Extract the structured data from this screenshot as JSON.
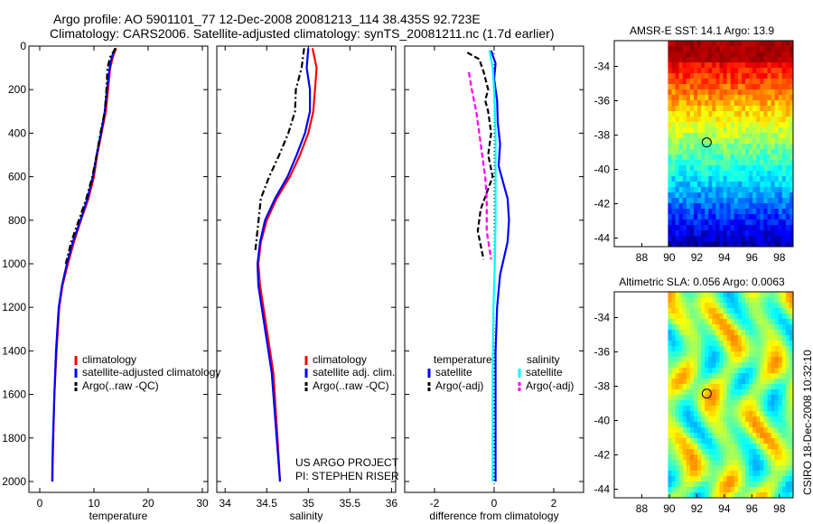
{
  "title_line1": "Argo profile: AO 5901101_77 12-Dec-2008 20081213_114 38.435S 92.723E",
  "title_line2": "Climatology: CARS2006. Satellite-adjusted climatology: synTS_20081211.nc (1.7d earlier)",
  "credit": "CSIRO 18-Dec-2008 10:32:10",
  "project_line1": "US ARGO PROJECT",
  "project_line2": "PI: STEPHEN RISER",
  "colors": {
    "climatology": "#ff0000",
    "satellite": "#0000ff",
    "argo": "#000000",
    "salinity_satellite": "#00ffff",
    "salinity_argo": "#ff00ff"
  },
  "chart_data": [
    {
      "type": "line",
      "id": "temperature",
      "xlabel": "temperature",
      "ylabel": "",
      "xlim": [
        -2,
        31
      ],
      "ylim": [
        2050,
        0
      ],
      "xticks": [
        0,
        10,
        20,
        30
      ],
      "yticks": [
        0,
        200,
        400,
        600,
        800,
        1000,
        1200,
        1400,
        1600,
        1800,
        2000
      ],
      "legend": [
        "climatology",
        "satellite-adjusted climatology",
        "Argo(..raw -QC)"
      ],
      "series": [
        {
          "name": "climatology",
          "color": "#ff0000",
          "style": "solid",
          "x": [
            14.1,
            13.5,
            13.0,
            12.6,
            12.2,
            11.4,
            10.6,
            10.0,
            9.0,
            7.6,
            6.3,
            5.2,
            4.2,
            3.6,
            3.1,
            2.7,
            2.5,
            2.4,
            2.35
          ],
          "y": [
            10,
            50,
            100,
            200,
            300,
            400,
            500,
            600,
            700,
            800,
            900,
            1000,
            1100,
            1200,
            1400,
            1600,
            1800,
            1900,
            2000
          ]
        },
        {
          "name": "satellite-adjusted climatology",
          "color": "#0000ff",
          "style": "solid",
          "x": [
            13.9,
            13.3,
            12.9,
            12.4,
            12.0,
            11.3,
            10.5,
            9.8,
            8.8,
            7.5,
            6.1,
            5.0,
            4.1,
            3.5,
            3.0,
            2.7,
            2.45,
            2.35,
            2.3
          ],
          "y": [
            10,
            50,
            100,
            200,
            300,
            400,
            500,
            600,
            700,
            800,
            900,
            1000,
            1100,
            1200,
            1400,
            1600,
            1800,
            1900,
            2000
          ]
        },
        {
          "name": "Argo(..raw -QC)",
          "color": "#000000",
          "style": "dashdot",
          "x": [
            14.0,
            13.0,
            12.5,
            12.3,
            12.0,
            11.2,
            10.5,
            9.7,
            8.6,
            7.2,
            5.8,
            4.8
          ],
          "y": [
            10,
            50,
            100,
            200,
            300,
            400,
            500,
            600,
            700,
            800,
            900,
            1000
          ]
        }
      ]
    },
    {
      "type": "line",
      "id": "salinity",
      "xlabel": "salinity",
      "ylabel": "",
      "xlim": [
        33.9,
        36.05
      ],
      "ylim": [
        2050,
        0
      ],
      "xticks": [
        34,
        34.5,
        35,
        35.5,
        36
      ],
      "legend": [
        "climatology",
        "satellite adj. clim.",
        "Argo(..raw -QC)"
      ],
      "series": [
        {
          "name": "climatology",
          "color": "#ff0000",
          "style": "solid",
          "x": [
            35.05,
            35.1,
            35.08,
            35.06,
            35.0,
            34.9,
            34.78,
            34.62,
            34.5,
            34.43,
            34.4,
            34.42,
            34.5,
            34.58,
            34.63,
            34.66
          ],
          "y": [
            10,
            100,
            200,
            300,
            400,
            500,
            600,
            700,
            800,
            900,
            1000,
            1100,
            1300,
            1500,
            1800,
            2000
          ]
        },
        {
          "name": "satellite adj. clim.",
          "color": "#0000ff",
          "style": "solid",
          "x": [
            35.0,
            34.98,
            35.02,
            35.02,
            34.96,
            34.86,
            34.75,
            34.6,
            34.48,
            34.42,
            34.39,
            34.4,
            34.48,
            34.56,
            34.62,
            34.66
          ],
          "y": [
            10,
            100,
            200,
            300,
            400,
            500,
            600,
            700,
            800,
            900,
            1000,
            1100,
            1300,
            1500,
            1800,
            2000
          ]
        },
        {
          "name": "Argo(..raw -QC)",
          "color": "#000000",
          "style": "dashdot",
          "x": [
            34.95,
            34.92,
            34.85,
            34.84,
            34.76,
            34.65,
            34.53,
            34.43,
            34.36
          ],
          "y": [
            10,
            100,
            200,
            300,
            400,
            500,
            600,
            700,
            950
          ]
        }
      ]
    },
    {
      "type": "line",
      "id": "difference",
      "xlabel": "difference from climatology",
      "ylabel": "",
      "xlim": [
        -3.0,
        3.0
      ],
      "ylim": [
        2050,
        0
      ],
      "xticks": [
        -2,
        0,
        2
      ],
      "legend": [
        "temperature",
        "satellite",
        "Argo(-adj)",
        "salinity",
        "satellite",
        "Argo(-adj)"
      ],
      "series": [
        {
          "name": "temperature satellite",
          "color": "#0000ff",
          "style": "solid",
          "x": [
            -0.1,
            0.05,
            0.0,
            0.1,
            0.12,
            0.2,
            0.15,
            0.35,
            0.45,
            0.5,
            0.45,
            0.2,
            0.1,
            0.05,
            0.05,
            0.05,
            0.05
          ],
          "y": [
            20,
            80,
            150,
            250,
            350,
            450,
            550,
            650,
            700,
            800,
            900,
            1050,
            1200,
            1400,
            1600,
            1800,
            2000
          ]
        },
        {
          "name": "temperature Argo(-adj)",
          "color": "#000000",
          "style": "dashed",
          "x": [
            -0.9,
            -0.5,
            -0.35,
            -0.2,
            -0.3,
            -0.2,
            -0.1,
            -0.2,
            -0.05,
            -0.45,
            -0.55,
            -0.4,
            -0.35
          ],
          "y": [
            30,
            60,
            120,
            200,
            250,
            300,
            400,
            500,
            600,
            750,
            850,
            950,
            980
          ]
        },
        {
          "name": "salinity satellite",
          "color": "#00ffff",
          "style": "solid",
          "x": [
            -0.15,
            -0.05,
            0.0,
            0.05,
            0.05,
            0.05,
            0.02,
            -0.02,
            -0.05,
            -0.05,
            -0.05
          ],
          "y": [
            20,
            100,
            200,
            400,
            600,
            800,
            1000,
            1200,
            1500,
            1800,
            2000
          ]
        },
        {
          "name": "salinity Argo(-adj)",
          "color": "#ff00ff",
          "style": "dashed",
          "x": [
            -0.85,
            -0.75,
            -0.6,
            -0.5,
            -0.4,
            -0.3,
            -0.25,
            -0.25,
            -0.1
          ],
          "y": [
            120,
            200,
            300,
            400,
            500,
            600,
            700,
            850,
            980
          ]
        }
      ]
    },
    {
      "type": "heatmap",
      "id": "sst",
      "title": "AMSR-E SST: 14.1  Argo: 13.9",
      "xlim": [
        86,
        99
      ],
      "ylim": [
        -44.5,
        -32.5
      ],
      "xticks": [
        88,
        90,
        92,
        94,
        96,
        98
      ],
      "yticks": [
        -34,
        -36,
        -38,
        -40,
        -42,
        -44
      ],
      "marker": [
        92.72,
        -38.43
      ]
    },
    {
      "type": "heatmap",
      "id": "sla",
      "title": "Altimetric SLA: 0.056  Argo: 0.0063",
      "xlim": [
        86,
        99
      ],
      "ylim": [
        -44.5,
        -32.5
      ],
      "xticks": [
        88,
        90,
        92,
        94,
        96,
        98
      ],
      "yticks": [
        -34,
        -36,
        -38,
        -40,
        -42,
        -44
      ],
      "marker": [
        92.72,
        -38.43
      ]
    }
  ]
}
